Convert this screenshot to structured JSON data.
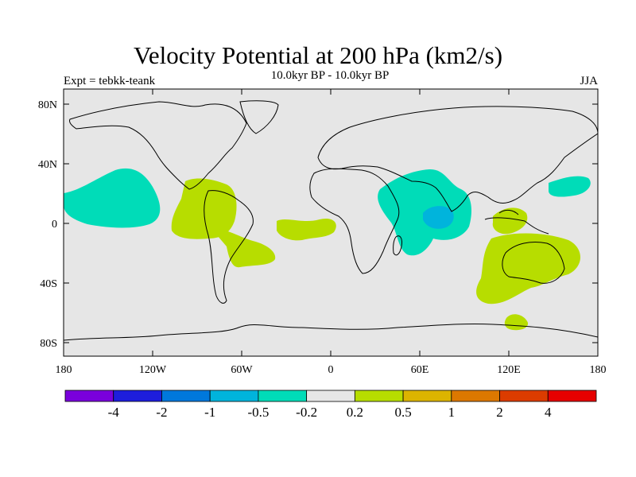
{
  "title": "Velocity Potential at 200 hPa (km2/s)",
  "subtitle": "10.0kyr BP - 10.0kyr BP",
  "left_label": "Expt = tebkk-teank",
  "right_label": "JJA",
  "colors": {
    "background": "#e6e6e6",
    "positive_fill": "#b7dd00",
    "negative_fill": "#00dcb8",
    "negative_core": "#00b4dc",
    "coastline": "#000000"
  },
  "map": {
    "lat_ticks": [
      "80N",
      "40N",
      "0",
      "40S",
      "80S"
    ],
    "lon_ticks": [
      "180",
      "120W",
      "60W",
      "0",
      "60E",
      "120E",
      "180"
    ]
  },
  "colorbar": {
    "colors": [
      "#7a00dc",
      "#1e1edc",
      "#0078dc",
      "#00b4dc",
      "#00dcb8",
      "#e6e6e6",
      "#b7dd00",
      "#dcb400",
      "#dc7800",
      "#dc3c00",
      "#e60000"
    ],
    "labels": [
      "-4",
      "-2",
      "-1",
      "-0.5",
      "-0.2",
      "0.2",
      "0.5",
      "1",
      "2",
      "4"
    ]
  }
}
